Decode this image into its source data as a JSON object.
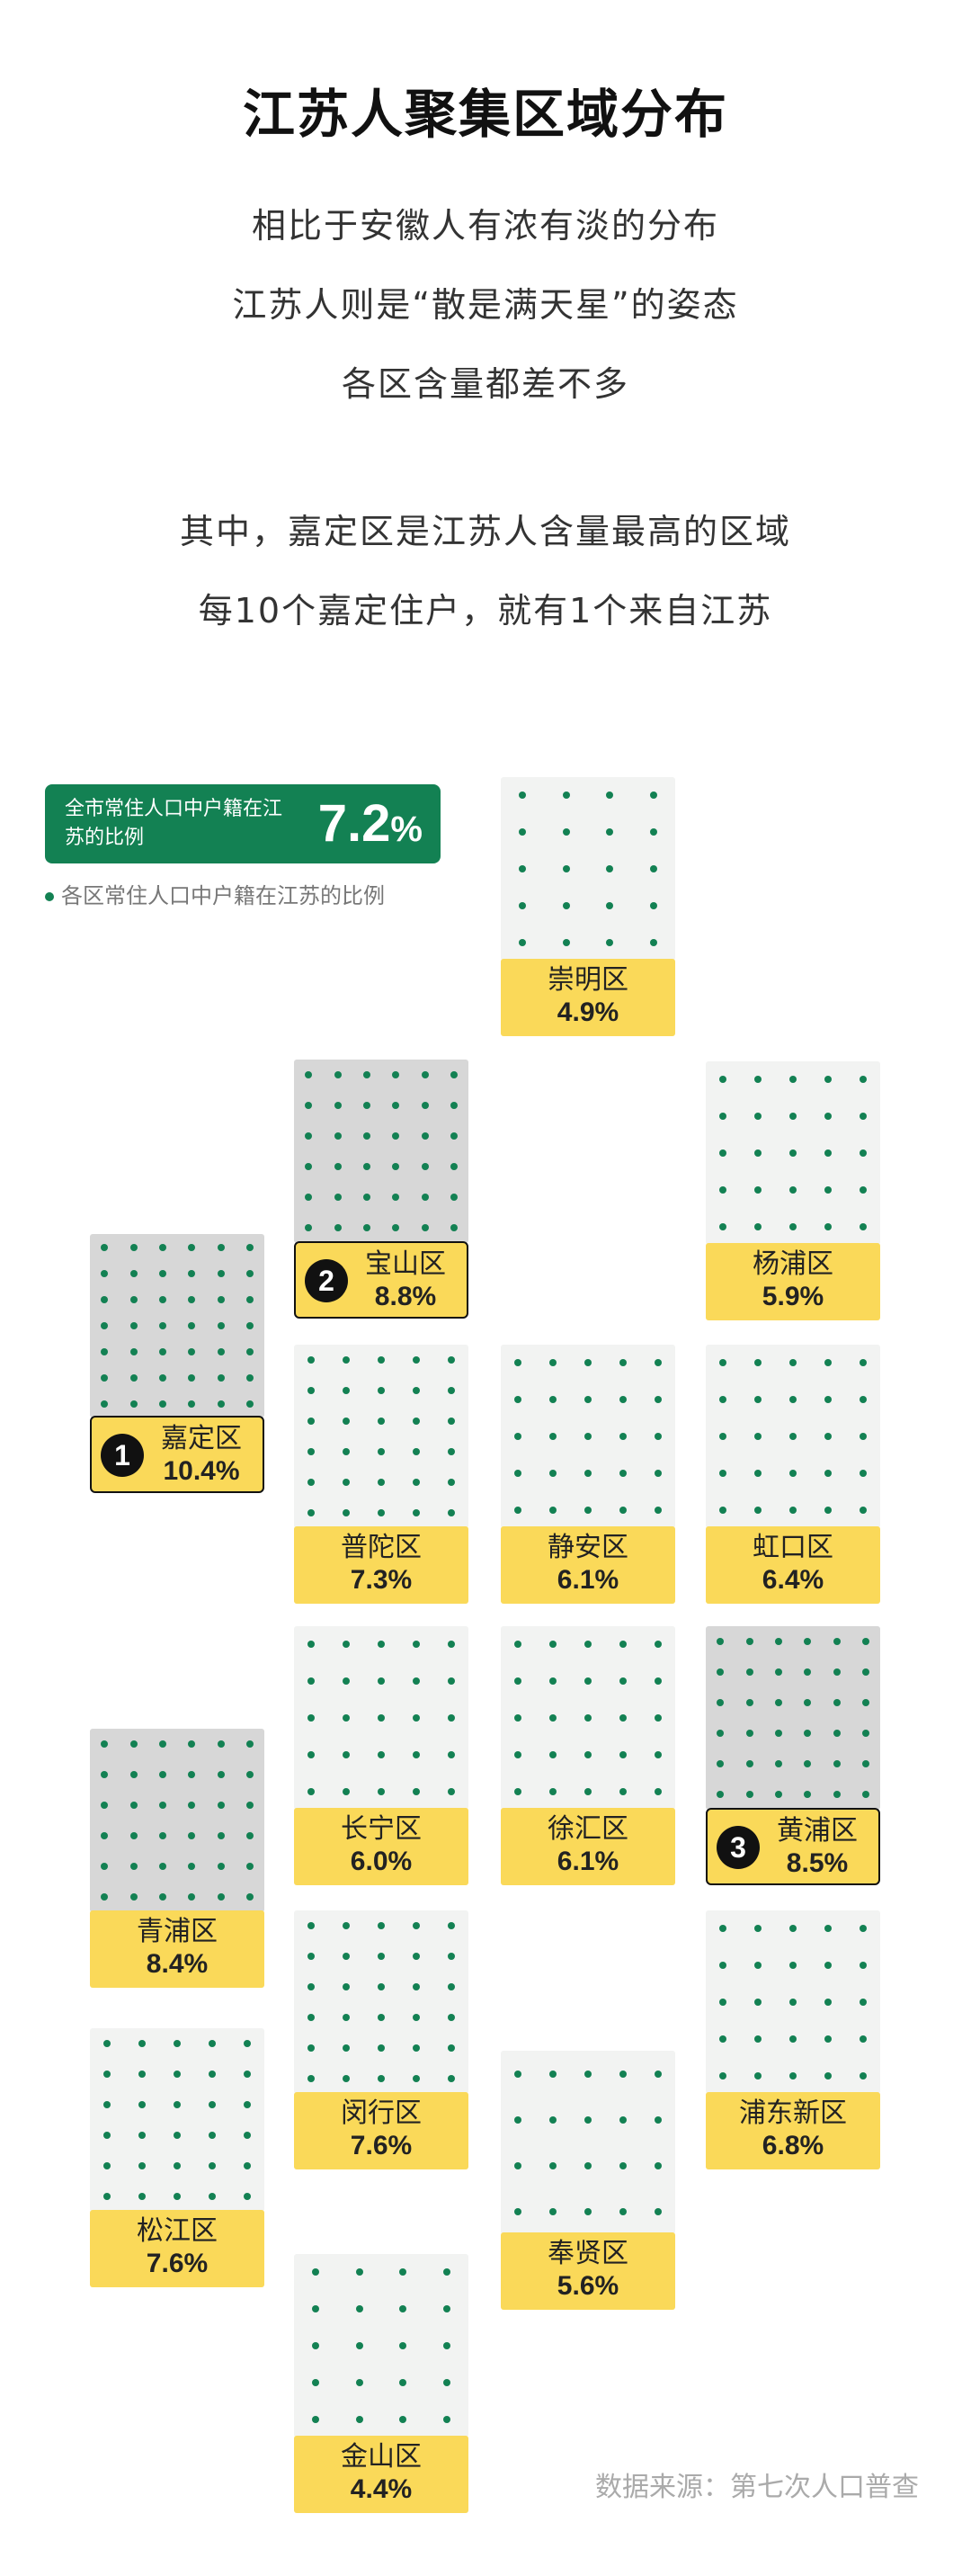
{
  "title": "江苏人聚集区域分布",
  "intro": [
    "相比于安徽人有浓有淡的分布",
    "江苏人则是“散是满天星”的姿态",
    "各区含量都差不多",
    "其中，嘉定区是江苏人含量最高的区域",
    "每10个嘉定住户，就有1个来自江苏"
  ],
  "summary": {
    "label": "全市常住人口中户籍在江苏的比例",
    "value_main": "7.2",
    "value_unit": "%"
  },
  "legend": "各区常住人口中户籍在江苏的比例",
  "colors": {
    "accent_green": "#138153",
    "tag_yellow": "#fad959",
    "cell_light": "#f2f3f2",
    "cell_dark": "#d7d7d7"
  },
  "chart_data": {
    "type": "table",
    "title": "江苏人聚集区域分布",
    "unit": "%",
    "overall": 7.2,
    "districts": [
      {
        "name": "崇明区",
        "value": 4.9,
        "label": "4.9%",
        "rank": ""
      },
      {
        "name": "宝山区",
        "value": 8.8,
        "label": "8.8%",
        "rank": "2"
      },
      {
        "name": "杨浦区",
        "value": 5.9,
        "label": "5.9%",
        "rank": ""
      },
      {
        "name": "嘉定区",
        "value": 10.4,
        "label": "10.4%",
        "rank": "1"
      },
      {
        "name": "普陀区",
        "value": 7.3,
        "label": "7.3%",
        "rank": ""
      },
      {
        "name": "静安区",
        "value": 6.1,
        "label": "6.1%",
        "rank": ""
      },
      {
        "name": "虹口区",
        "value": 6.4,
        "label": "6.4%",
        "rank": ""
      },
      {
        "name": "长宁区",
        "value": 6.0,
        "label": "6.0%",
        "rank": ""
      },
      {
        "name": "徐汇区",
        "value": 6.1,
        "label": "6.1%",
        "rank": ""
      },
      {
        "name": "黄浦区",
        "value": 8.5,
        "label": "8.5%",
        "rank": "3"
      },
      {
        "name": "青浦区",
        "value": 8.4,
        "label": "8.4%",
        "rank": ""
      },
      {
        "name": "浦东新区",
        "value": 6.8,
        "label": "6.8%",
        "rank": ""
      },
      {
        "name": "闵行区",
        "value": 7.6,
        "label": "7.6%",
        "rank": ""
      },
      {
        "name": "松江区",
        "value": 7.6,
        "label": "7.6%",
        "rank": ""
      },
      {
        "name": "奉贤区",
        "value": 5.6,
        "label": "5.6%",
        "rank": ""
      },
      {
        "name": "金山区",
        "value": 4.4,
        "label": "4.4%",
        "rank": ""
      }
    ]
  },
  "source": "数据来源：第七次人口普查"
}
